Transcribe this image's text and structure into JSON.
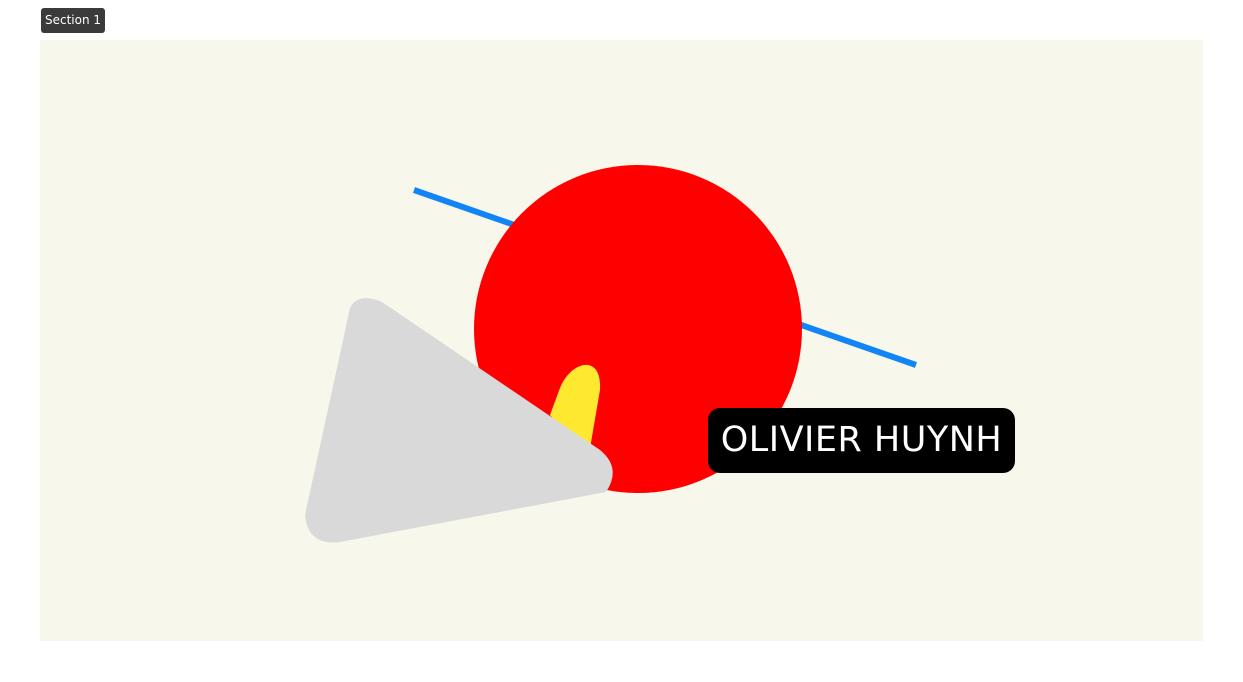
{
  "section": {
    "label": "Section 1"
  },
  "canvas": {
    "background": "#f7f7ec",
    "shapes": [
      {
        "name": "blue-line",
        "color": "#1185f5"
      },
      {
        "name": "red-circle",
        "color": "#ff0000"
      },
      {
        "name": "yellow-shape",
        "color": "#ffe830"
      },
      {
        "name": "gray-triangle",
        "color": "#d9d9d9"
      }
    ]
  },
  "name_tag": {
    "text": "OLIVIER HUYNH",
    "background": "#000000",
    "color": "#ffffff"
  }
}
